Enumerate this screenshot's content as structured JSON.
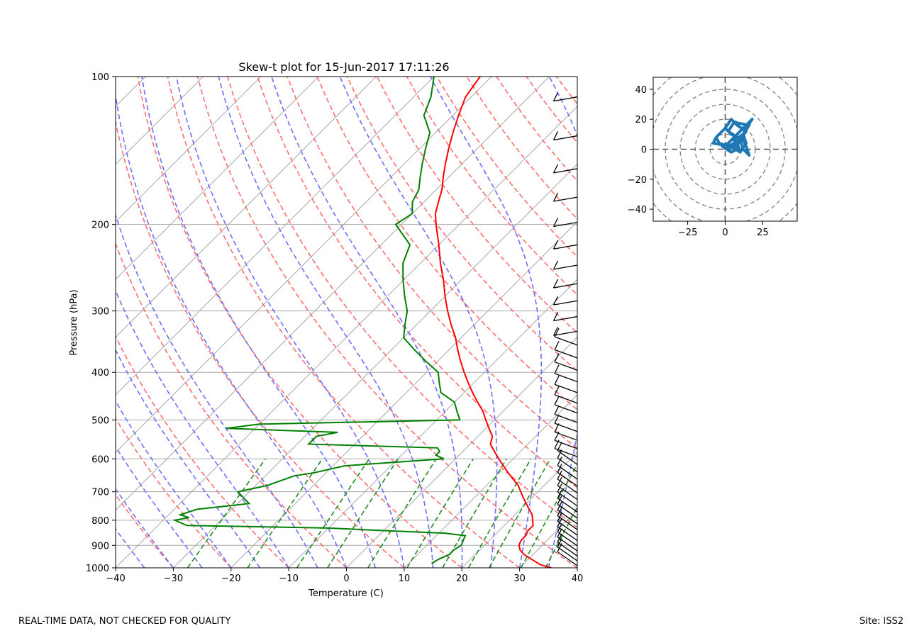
{
  "chart_data": [
    {
      "type": "line",
      "subtype": "skew-t log-p",
      "title": "Skew-t plot for 15-Jun-2017 17:11:26",
      "xlabel": "Temperature (C)",
      "ylabel": "Pressure (hPa)",
      "xlim": [
        -40,
        40
      ],
      "ylim": [
        1000,
        100
      ],
      "y_scale": "log",
      "x_ticks": [
        "−40",
        "−30",
        "−20",
        "−10",
        "0",
        "10",
        "20",
        "30",
        "40"
      ],
      "y_ticks": [
        "100",
        "200",
        "300",
        "400",
        "500",
        "600",
        "700",
        "800",
        "900",
        "1000"
      ],
      "grid": true,
      "colors": {
        "temperature": "#ff0000",
        "dewpoint": "#008000",
        "dry_adiabats": "#ff6e6e",
        "moist_adiabats": "#6e6eff",
        "mixing_ratio": "#228b22",
        "isotherms": "#aaaaaa",
        "wind_barbs": "#000000"
      },
      "series": [
        {
          "key": "temperature",
          "pressure": [
            1000,
            985,
            960,
            940,
            920,
            900,
            880,
            860,
            840,
            820,
            800,
            780,
            760,
            740,
            720,
            700,
            680,
            660,
            640,
            620,
            600,
            580,
            560,
            540,
            520,
            500,
            480,
            460,
            440,
            420,
            400,
            380,
            360,
            340,
            320,
            300,
            280,
            260,
            240,
            220,
            200,
            190,
            180,
            170,
            160,
            150,
            140,
            130,
            120,
            110,
            100
          ],
          "temp_c": [
            35.5,
            33,
            30.5,
            28.5,
            27,
            26,
            25.5,
            25.5,
            25,
            25,
            24,
            23,
            21.5,
            20,
            18.5,
            17,
            15.5,
            13.5,
            11.5,
            9.5,
            7.5,
            5.5,
            3.5,
            2.5,
            0.5,
            -1.5,
            -3.5,
            -6,
            -8.5,
            -11,
            -13.5,
            -16,
            -18.5,
            -21,
            -24,
            -27,
            -30,
            -33,
            -36.5,
            -40,
            -44,
            -46,
            -47.5,
            -49,
            -51,
            -53,
            -55,
            -57,
            -59,
            -61,
            -62
          ]
        },
        {
          "key": "dewpoint",
          "pressure": [
            980,
            960,
            940,
            920,
            900,
            880,
            860,
            850,
            840,
            830,
            820,
            800,
            790,
            780,
            760,
            740,
            720,
            700,
            680,
            660,
            650,
            640,
            620,
            600,
            590,
            580,
            570,
            560,
            550,
            540,
            530,
            520,
            510,
            500,
            480,
            460,
            440,
            420,
            400,
            380,
            360,
            340,
            320,
            300,
            280,
            260,
            240,
            220,
            200,
            190,
            180,
            170,
            160,
            150,
            140,
            130,
            120,
            110,
            100
          ],
          "dewp_c": [
            14,
            14.5,
            15.5,
            15.5,
            16,
            15.5,
            15,
            11,
            0,
            -10,
            -35,
            -38,
            -36,
            -38,
            -36,
            -28,
            -30,
            -32,
            -28,
            -26,
            -25,
            -22,
            -18,
            -2,
            -4,
            -4,
            -5,
            -28,
            -28,
            -28,
            -25,
            -45,
            -40,
            -6,
            -8,
            -10,
            -14,
            -16,
            -18,
            -22,
            -26,
            -30,
            -32,
            -34,
            -37,
            -40,
            -43,
            -45,
            -51,
            -50,
            -52,
            -53,
            -55,
            -57,
            -59,
            -61,
            -65,
            -67,
            -70
          ]
        }
      ],
      "footer_left": "REAL-TIME DATA, NOT CHECKED FOR QUALITY",
      "footer_right": "Site: ISS2"
    },
    {
      "type": "line",
      "subtype": "hodograph",
      "xlim": [
        -48,
        48
      ],
      "ylim": [
        -48,
        48
      ],
      "x_ticks": [
        "−25",
        "0",
        "25"
      ],
      "y_ticks": [
        "40",
        "20",
        "0",
        "−20",
        "−40"
      ],
      "range_rings": [
        10,
        20,
        30,
        40,
        50,
        60
      ],
      "series": [
        {
          "key": "hodograph",
          "color": "#1f77b4",
          "u": [
            0,
            6,
            10,
            8,
            12,
            4,
            0,
            -6,
            -8,
            4,
            10,
            14,
            12,
            16,
            6,
            2,
            8,
            12,
            14,
            16,
            12,
            10,
            14,
            8,
            4,
            0,
            -6,
            -4,
            2,
            10,
            14,
            18,
            16,
            10,
            6,
            2,
            -2,
            4,
            8,
            6,
            12
          ],
          "v": [
            0,
            2,
            -2,
            4,
            6,
            10,
            14,
            8,
            4,
            2,
            -2,
            4,
            10,
            16,
            18,
            12,
            8,
            6,
            2,
            -4,
            0,
            6,
            12,
            16,
            20,
            14,
            8,
            4,
            2,
            6,
            14,
            20,
            18,
            12,
            8,
            4,
            2,
            -2,
            0,
            6,
            10
          ]
        }
      ]
    }
  ]
}
